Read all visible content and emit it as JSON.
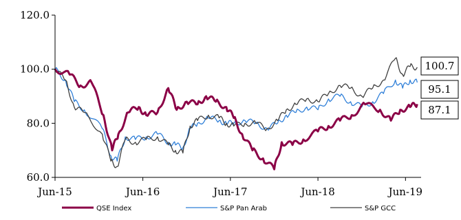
{
  "chart_data": {
    "type": "line",
    "title": "",
    "xlabel": "",
    "ylabel": "",
    "ylim": [
      60,
      120
    ],
    "yticks": [
      "60.0",
      "80.0",
      "100.0",
      "120.0"
    ],
    "xticks": [
      "Jun-15",
      "Jun-16",
      "Jun-17",
      "Jun-18",
      "Jun-19"
    ],
    "legend_position": "bottom",
    "end_labels": [
      "100.7",
      "95.1",
      "87.1"
    ],
    "series": [
      {
        "name": "QSE Index",
        "color": "#8b0046",
        "end_value": 87.1,
        "points": [
          [
            "2015-06-01",
            100
          ],
          [
            "2015-08-01",
            98
          ],
          [
            "2015-09-15",
            94
          ],
          [
            "2015-11-01",
            95
          ],
          [
            "2015-12-20",
            83
          ],
          [
            "2016-01-25",
            70
          ],
          [
            "2016-02-20",
            76
          ],
          [
            "2016-04-01",
            84
          ],
          [
            "2016-05-15",
            86
          ],
          [
            "2016-06-15",
            83
          ],
          [
            "2016-08-01",
            84
          ],
          [
            "2016-09-15",
            93
          ],
          [
            "2016-10-20",
            85
          ],
          [
            "2016-12-01",
            88
          ],
          [
            "2017-01-15",
            87
          ],
          [
            "2017-02-20",
            90
          ],
          [
            "2017-04-01",
            88
          ],
          [
            "2017-05-15",
            86
          ],
          [
            "2017-06-15",
            82
          ],
          [
            "2017-07-20",
            76
          ],
          [
            "2017-09-01",
            70
          ],
          [
            "2017-10-15",
            67
          ],
          [
            "2017-12-01",
            63
          ],
          [
            "2018-01-01",
            73
          ],
          [
            "2018-02-15",
            72
          ],
          [
            "2018-04-01",
            74
          ],
          [
            "2018-06-01",
            77
          ],
          [
            "2018-07-15",
            79
          ],
          [
            "2018-09-01",
            81
          ],
          [
            "2018-10-20",
            83
          ],
          [
            "2018-12-15",
            87
          ],
          [
            "2019-02-15",
            85
          ],
          [
            "2019-04-01",
            81
          ],
          [
            "2019-05-10",
            85
          ],
          [
            "2019-06-20",
            86
          ],
          [
            "2019-07-20",
            87.1
          ]
        ]
      },
      {
        "name": "S&P Pan Arab",
        "color": "#2f7fd8",
        "end_value": 95.1,
        "points": [
          [
            "2015-06-01",
            100
          ],
          [
            "2015-07-15",
            96
          ],
          [
            "2015-08-20",
            88
          ],
          [
            "2015-10-01",
            85
          ],
          [
            "2015-12-15",
            78
          ],
          [
            "2016-01-20",
            68
          ],
          [
            "2016-02-15",
            66
          ],
          [
            "2016-03-20",
            75
          ],
          [
            "2016-05-01",
            74
          ],
          [
            "2016-06-15",
            75
          ],
          [
            "2016-08-01",
            76
          ],
          [
            "2016-09-15",
            73
          ],
          [
            "2016-10-15",
            72
          ],
          [
            "2016-11-15",
            71
          ],
          [
            "2016-12-15",
            78
          ],
          [
            "2017-01-15",
            80
          ],
          [
            "2017-03-01",
            82
          ],
          [
            "2017-04-15",
            81
          ],
          [
            "2017-05-15",
            80
          ],
          [
            "2017-06-15",
            80
          ],
          [
            "2017-08-01",
            81
          ],
          [
            "2017-09-15",
            80
          ],
          [
            "2017-11-01",
            78
          ],
          [
            "2017-12-15",
            80
          ],
          [
            "2018-01-20",
            83
          ],
          [
            "2018-03-01",
            84
          ],
          [
            "2018-04-15",
            86
          ],
          [
            "2018-06-01",
            85
          ],
          [
            "2018-07-15",
            89
          ],
          [
            "2018-09-01",
            90
          ],
          [
            "2018-10-15",
            88
          ],
          [
            "2018-12-01",
            86
          ],
          [
            "2019-01-15",
            88
          ],
          [
            "2019-03-01",
            91
          ],
          [
            "2019-04-20",
            96
          ],
          [
            "2019-05-20",
            93
          ],
          [
            "2019-06-20",
            96
          ],
          [
            "2019-07-20",
            95.1
          ]
        ]
      },
      {
        "name": "S&P GCC",
        "color": "#3f3f3f",
        "end_value": 100.7,
        "points": [
          [
            "2015-06-01",
            100
          ],
          [
            "2015-07-15",
            96
          ],
          [
            "2015-08-20",
            86
          ],
          [
            "2015-10-01",
            84
          ],
          [
            "2015-12-15",
            76
          ],
          [
            "2016-01-20",
            66
          ],
          [
            "2016-02-15",
            64
          ],
          [
            "2016-03-20",
            74
          ],
          [
            "2016-05-01",
            73
          ],
          [
            "2016-06-15",
            74
          ],
          [
            "2016-08-01",
            75
          ],
          [
            "2016-09-15",
            72
          ],
          [
            "2016-10-15",
            70
          ],
          [
            "2016-11-15",
            69
          ],
          [
            "2016-12-15",
            79
          ],
          [
            "2017-01-15",
            81
          ],
          [
            "2017-03-01",
            83
          ],
          [
            "2017-04-15",
            82
          ],
          [
            "2017-05-15",
            80
          ],
          [
            "2017-06-15",
            79
          ],
          [
            "2017-08-01",
            80
          ],
          [
            "2017-09-15",
            80
          ],
          [
            "2017-11-01",
            78
          ],
          [
            "2017-12-15",
            81
          ],
          [
            "2018-01-20",
            85
          ],
          [
            "2018-03-01",
            87
          ],
          [
            "2018-04-15",
            89
          ],
          [
            "2018-06-01",
            88
          ],
          [
            "2018-07-15",
            91
          ],
          [
            "2018-09-01",
            94
          ],
          [
            "2018-10-15",
            93
          ],
          [
            "2018-12-01",
            90
          ],
          [
            "2019-01-15",
            93
          ],
          [
            "2019-03-01",
            96
          ],
          [
            "2019-04-20",
            104
          ],
          [
            "2019-05-20",
            98
          ],
          [
            "2019-06-20",
            101
          ],
          [
            "2019-07-20",
            100.7
          ]
        ]
      }
    ]
  }
}
